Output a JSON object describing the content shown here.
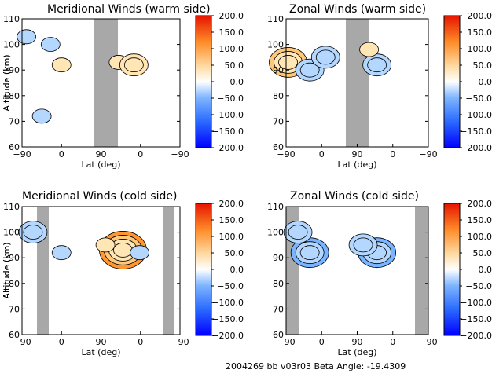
{
  "footer": "2004269 bb v03r03   Beta Angle: -19.4309",
  "colors": {
    "colormap": [
      "#0000ff",
      "#1e5aff",
      "#3c8cff",
      "#78b4ff",
      "#b4d7ff",
      "#ffffff",
      "#ffe6b4",
      "#ffc878",
      "#ff9632",
      "#ff5a0a",
      "#e61e00"
    ],
    "gap": "#a8a8a8",
    "contour": "#000000"
  },
  "chart_data": [
    {
      "type": "heatmap",
      "title": "Meridional Winds (warm side)",
      "xlabel": "Lat (deg)",
      "ylabel": "Altitude (km)",
      "xticks": [
        "−90",
        "0",
        "90",
        "0",
        "−90"
      ],
      "yticks": [
        "60",
        "70",
        "80",
        "90",
        "100",
        "110"
      ],
      "ylim": [
        60,
        110
      ],
      "colorbar": {
        "range": [
          -200,
          200
        ],
        "ticks": [
          "200.0",
          "150.0",
          "100.0",
          "50.0",
          "0.0",
          "−50.0",
          "−100.0",
          "−150.0",
          "−200.0"
        ]
      },
      "features": [
        {
          "x": -80,
          "alt": 103,
          "value": -25
        },
        {
          "x": -25,
          "alt": 100,
          "value": -30
        },
        {
          "x": 0,
          "alt": 92,
          "value": 25
        },
        {
          "x": -45,
          "alt": 72,
          "value": -20
        },
        {
          "x": 130,
          "alt": 93,
          "value": 25
        },
        {
          "x": 165,
          "alt": 92,
          "value": 60
        }
      ]
    },
    {
      "type": "heatmap",
      "title": "Zonal Winds (warm side)",
      "xlabel": "Lat (deg)",
      "ylabel": "Altitude (km)",
      "xticks": [
        "−90",
        "0",
        "90",
        "0",
        "−90"
      ],
      "yticks": [
        "60",
        "70",
        "80",
        "90",
        "100",
        "110"
      ],
      "ylim": [
        60,
        110
      ],
      "colorbar": {
        "range": [
          -200,
          200
        ],
        "ticks": [
          "200.0",
          "150.0",
          "100.0",
          "50.0",
          "0.0",
          "−50.0",
          "−100.0",
          "−150.0",
          "−200.0"
        ]
      },
      "features": [
        {
          "x": -85,
          "alt": 93,
          "value": 80
        },
        {
          "x": -30,
          "alt": 90,
          "value": -40
        },
        {
          "x": 10,
          "alt": 95,
          "value": -40
        },
        {
          "x": 140,
          "alt": 92,
          "value": -40
        },
        {
          "x": 120,
          "alt": 98,
          "value": 20
        }
      ]
    },
    {
      "type": "heatmap",
      "title": "Meridional Winds (cold side)",
      "xlabel": "Lat (deg)",
      "ylabel": "Altitude (km)",
      "xticks": [
        "−90",
        "0",
        "90",
        "0",
        "−90"
      ],
      "yticks": [
        "60",
        "70",
        "80",
        "90",
        "100",
        "110"
      ],
      "ylim": [
        60,
        110
      ],
      "colorbar": {
        "range": [
          -200,
          200
        ],
        "ticks": [
          "200.0",
          "150.0",
          "100.0",
          "50.0",
          "0.0",
          "−50.0",
          "−100.0",
          "−150.0",
          "−200.0"
        ]
      },
      "features": [
        {
          "x": -65,
          "alt": 100,
          "value": -60
        },
        {
          "x": 0,
          "alt": 92,
          "value": -30
        },
        {
          "x": 140,
          "alt": 93,
          "value": 90
        },
        {
          "x": 100,
          "alt": 95,
          "value": 30
        },
        {
          "x": 178,
          "alt": 92,
          "value": -30
        }
      ]
    },
    {
      "type": "heatmap",
      "title": "Zonal Winds (cold side)",
      "xlabel": "Lat (deg)",
      "ylabel": "Altitude (km)",
      "xticks": [
        "−90",
        "0",
        "90",
        "0",
        "−90"
      ],
      "yticks": [
        "60",
        "70",
        "80",
        "90",
        "100",
        "110"
      ],
      "ylim": [
        60,
        110
      ],
      "colorbar": {
        "range": [
          -200,
          200
        ],
        "ticks": [
          "200.0",
          "150.0",
          "100.0",
          "50.0",
          "0.0",
          "−50.0",
          "−100.0",
          "−150.0",
          "−200.0"
        ]
      },
      "features": [
        {
          "x": -30,
          "alt": 92,
          "value": -80
        },
        {
          "x": -60,
          "alt": 100,
          "value": -50
        },
        {
          "x": 140,
          "alt": 92,
          "value": -70
        },
        {
          "x": 105,
          "alt": 95,
          "value": -40
        }
      ]
    }
  ]
}
